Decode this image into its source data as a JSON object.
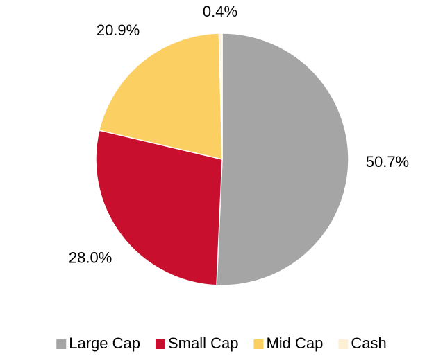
{
  "chart_data": {
    "type": "pie",
    "categories": [
      "Large Cap",
      "Small Cap",
      "Mid Cap",
      "Cash"
    ],
    "values": [
      50.7,
      28.0,
      20.9,
      0.4
    ],
    "value_labels": [
      "50.7%",
      "28.0%",
      "20.9%",
      "0.4%"
    ],
    "colors": [
      "#a5a5a5",
      "#c8102e",
      "#fccf63",
      "#fdf0d5"
    ],
    "legend": "bottom"
  }
}
